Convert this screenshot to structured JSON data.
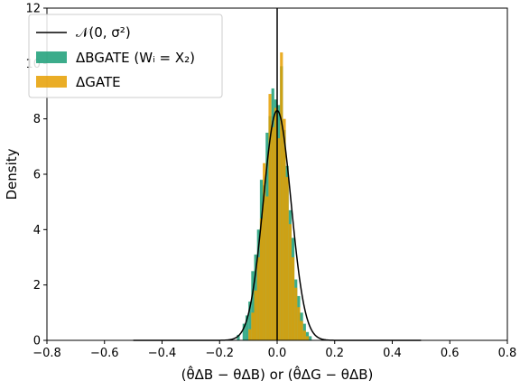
{
  "chart_data": {
    "type": "bar",
    "xlabel": "(θ̂ΔB − θΔB) or (θ̂ΔG − θΔB)",
    "ylabel": "Density",
    "xlim": [
      -0.8,
      0.8
    ],
    "ylim": [
      0,
      12
    ],
    "xticks": [
      "−0.8",
      "−0.6",
      "−0.4",
      "−0.2",
      "0.0",
      "0.2",
      "0.4",
      "0.6",
      "0.8"
    ],
    "yticks": [
      "0",
      "2",
      "4",
      "6",
      "8",
      "10",
      "12"
    ],
    "legend": {
      "placement": "top-left",
      "items": [
        "𝒩(0, σ²)",
        "ΔBGATE (Wᵢ = X₂)",
        "ΔGATE"
      ]
    },
    "vline_x": 0.0,
    "normal_curve": {
      "mean": 0.0,
      "sigma": 0.048,
      "peak_density": 8.3
    },
    "series": [
      {
        "name": "ΔBGATE (Wᵢ = X₂)",
        "color": "#1a9e77",
        "bins": [
          {
            "x0": -0.14,
            "x1": -0.13,
            "y": 0.2
          },
          {
            "x0": -0.12,
            "x1": -0.11,
            "y": 0.6
          },
          {
            "x0": -0.11,
            "x1": -0.1,
            "y": 0.9
          },
          {
            "x0": -0.1,
            "x1": -0.09,
            "y": 1.4
          },
          {
            "x0": -0.09,
            "x1": -0.08,
            "y": 2.5
          },
          {
            "x0": -0.08,
            "x1": -0.07,
            "y": 3.1
          },
          {
            "x0": -0.07,
            "x1": -0.06,
            "y": 4.0
          },
          {
            "x0": -0.06,
            "x1": -0.05,
            "y": 5.8
          },
          {
            "x0": -0.05,
            "x1": -0.04,
            "y": 5.6
          },
          {
            "x0": -0.04,
            "x1": -0.03,
            "y": 7.5
          },
          {
            "x0": -0.03,
            "x1": -0.02,
            "y": 8.1
          },
          {
            "x0": -0.02,
            "x1": -0.01,
            "y": 9.1
          },
          {
            "x0": -0.01,
            "x1": 0.0,
            "y": 8.7
          },
          {
            "x0": 0.0,
            "x1": 0.01,
            "y": 8.5
          },
          {
            "x0": 0.01,
            "x1": 0.02,
            "y": 9.9
          },
          {
            "x0": 0.02,
            "x1": 0.03,
            "y": 7.6
          },
          {
            "x0": 0.03,
            "x1": 0.04,
            "y": 6.3
          },
          {
            "x0": 0.04,
            "x1": 0.05,
            "y": 4.7
          },
          {
            "x0": 0.05,
            "x1": 0.06,
            "y": 3.7
          },
          {
            "x0": 0.06,
            "x1": 0.07,
            "y": 2.2
          },
          {
            "x0": 0.07,
            "x1": 0.08,
            "y": 1.6
          },
          {
            "x0": 0.08,
            "x1": 0.09,
            "y": 1.0
          },
          {
            "x0": 0.09,
            "x1": 0.1,
            "y": 0.6
          },
          {
            "x0": 0.1,
            "x1": 0.11,
            "y": 0.3
          },
          {
            "x0": 0.11,
            "x1": 0.12,
            "y": 0.15
          }
        ]
      },
      {
        "name": "ΔGATE",
        "color": "#e69f00",
        "bins": [
          {
            "x0": -0.1,
            "x1": -0.09,
            "y": 0.4
          },
          {
            "x0": -0.09,
            "x1": -0.08,
            "y": 1.0
          },
          {
            "x0": -0.08,
            "x1": -0.07,
            "y": 1.8
          },
          {
            "x0": -0.07,
            "x1": -0.06,
            "y": 3.0
          },
          {
            "x0": -0.06,
            "x1": -0.05,
            "y": 4.4
          },
          {
            "x0": -0.05,
            "x1": -0.04,
            "y": 6.4
          },
          {
            "x0": -0.04,
            "x1": -0.03,
            "y": 5.2
          },
          {
            "x0": -0.03,
            "x1": -0.02,
            "y": 8.9
          },
          {
            "x0": -0.02,
            "x1": -0.01,
            "y": 7.7
          },
          {
            "x0": -0.01,
            "x1": 0.0,
            "y": 8.4
          },
          {
            "x0": 0.0,
            "x1": 0.01,
            "y": 7.3
          },
          {
            "x0": 0.01,
            "x1": 0.02,
            "y": 10.4
          },
          {
            "x0": 0.02,
            "x1": 0.03,
            "y": 8.0
          },
          {
            "x0": 0.03,
            "x1": 0.04,
            "y": 5.9
          },
          {
            "x0": 0.04,
            "x1": 0.05,
            "y": 4.2
          },
          {
            "x0": 0.05,
            "x1": 0.06,
            "y": 3.0
          },
          {
            "x0": 0.06,
            "x1": 0.07,
            "y": 1.9
          },
          {
            "x0": 0.07,
            "x1": 0.08,
            "y": 1.2
          },
          {
            "x0": 0.08,
            "x1": 0.09,
            "y": 0.7
          },
          {
            "x0": 0.09,
            "x1": 0.1,
            "y": 0.35
          },
          {
            "x0": 0.1,
            "x1": 0.11,
            "y": 0.15
          }
        ]
      }
    ]
  }
}
